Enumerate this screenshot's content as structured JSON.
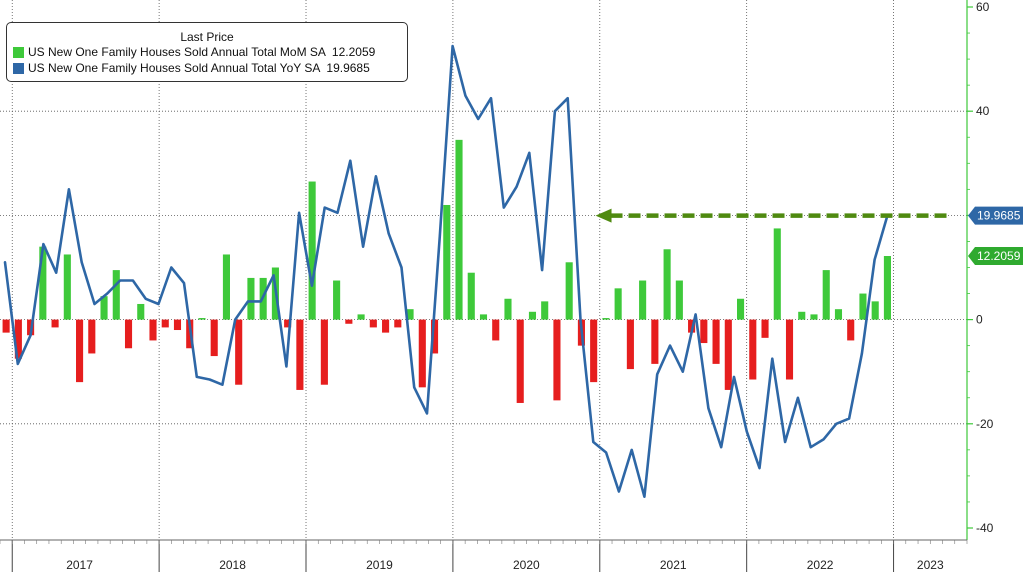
{
  "chart_data": {
    "type": "bar+line",
    "title": "",
    "xlabel": "",
    "ylabel": "",
    "ylim": [
      -40,
      60
    ],
    "y_ticks": [
      -40,
      -20,
      0,
      20,
      40,
      60
    ],
    "x_range": [
      "2016-12",
      "2023-07"
    ],
    "years": [
      "2017",
      "2018",
      "2019",
      "2020",
      "2021",
      "2022",
      "2023"
    ],
    "legend": {
      "title": "Last Price",
      "placement": "top-left"
    },
    "grid": true,
    "colors": {
      "mom_positive": "#3ec93a",
      "mom_negative": "#e61e1e",
      "yoy_line": "#2e67a6",
      "arrow": "#4f8a10",
      "yoy_tag": "#2e67a6",
      "mom_tag": "#2faa2f"
    },
    "series": [
      {
        "name": "US New One Family Houses Sold Annual Total MoM SA",
        "last": "12.2059",
        "kind": "bar",
        "values": [
          -2.5,
          -7.5,
          -3,
          14,
          -1.5,
          12.5,
          -12,
          -6.5,
          4.5,
          9.5,
          -5.5,
          3,
          -4,
          -1.5,
          -2,
          -5.5,
          0.3,
          -7,
          12.5,
          -12.5,
          8,
          8,
          10,
          -1.5,
          -13.5,
          26.5,
          -12.5,
          7.5,
          -0.8,
          1,
          -1.5,
          -2.5,
          -1.5,
          2,
          -13,
          -6.5,
          22,
          34.5,
          9,
          1,
          -4,
          4,
          -16,
          1.5,
          3.5,
          -15.5,
          11,
          -5,
          -12,
          0.3,
          6,
          -9.5,
          7.5,
          -8.5,
          13.5,
          7.5,
          -2.5,
          -4.5,
          -8.5,
          -13.5,
          4,
          -11.5,
          -3.5,
          17.5,
          -11.5,
          1.5,
          1,
          9.5,
          2,
          -4,
          5,
          3.5,
          12.2059
        ]
      },
      {
        "name": "US New One Family Houses Sold Annual Total YoY SA",
        "last": "19.9685",
        "kind": "line",
        "values": [
          11,
          -8.5,
          -3,
          14.5,
          9,
          25,
          11,
          3,
          5,
          7.5,
          7.5,
          4,
          3,
          10,
          7,
          -11,
          -11.5,
          -12.5,
          0,
          3.5,
          3.5,
          8.5,
          -9,
          20.5,
          6.5,
          21.5,
          20.5,
          30.5,
          14,
          27.5,
          16.5,
          10,
          -13,
          -18,
          16,
          52.5,
          43,
          38.5,
          42.5,
          21.5,
          25.5,
          32,
          9.5,
          40,
          42.5,
          0,
          -23.5,
          -25.5,
          -33,
          -25,
          -34,
          -10.5,
          -5,
          -10,
          1,
          -17,
          -24.5,
          -11,
          -21.5,
          -28.5,
          -7.5,
          -23.5,
          -15,
          -24.5,
          -23,
          -20,
          -19,
          -6.5,
          11.5,
          19.9685
        ]
      }
    ],
    "annotations": [
      {
        "type": "dashed-arrow",
        "from": {
          "x": "2023-05",
          "y": 19.9685
        },
        "to": {
          "x": "2020-12",
          "y": 19.9685
        }
      }
    ]
  }
}
